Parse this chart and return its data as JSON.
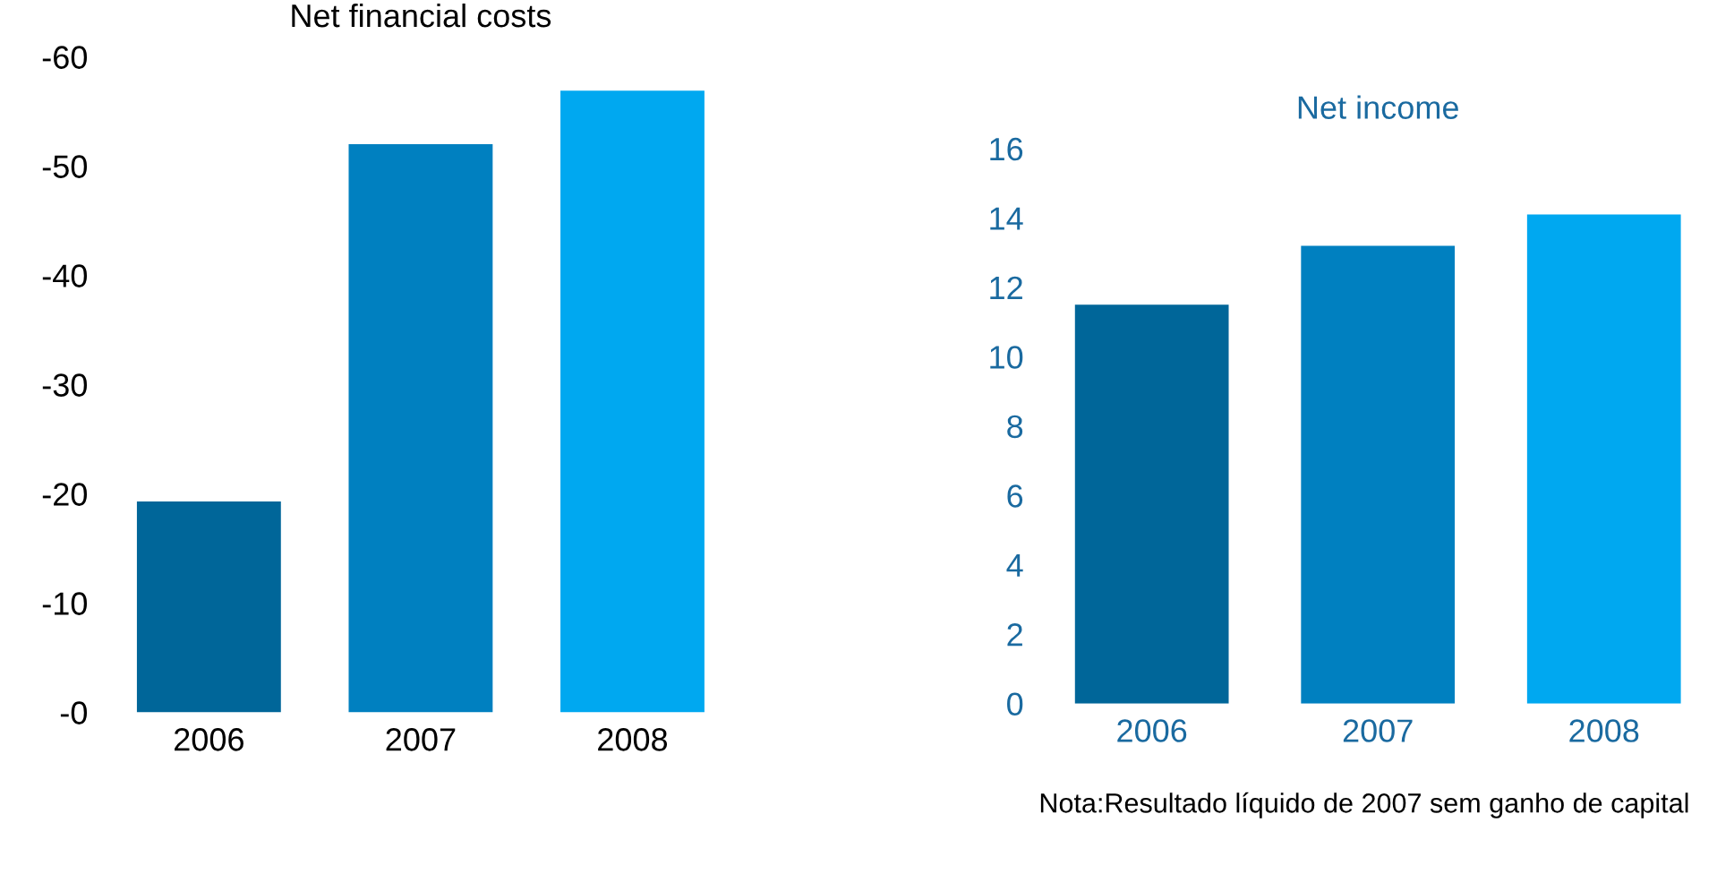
{
  "chart_data": [
    {
      "type": "bar",
      "title": "Net financial costs",
      "categories": [
        "2006",
        "2007",
        "2008"
      ],
      "colors": [
        "#006699",
        "#0080c0",
        "#00a8f0"
      ],
      "values": [
        -19.3,
        -52.0,
        -56.9
      ],
      "ylim": [
        0,
        -60
      ],
      "yticks": [
        {
          "value": 0,
          "label": "-0"
        },
        -10,
        -20,
        -30,
        -40,
        -50,
        -60
      ],
      "grid": false,
      "legend": false
    },
    {
      "type": "bar",
      "title": "Net income",
      "categories": [
        "2006",
        "2007",
        "2008"
      ],
      "colors": [
        "#006699",
        "#0080c0",
        "#00a8f0"
      ],
      "values": [
        11.5,
        13.2,
        14.1
      ],
      "ylim": [
        0,
        16
      ],
      "yticks": [
        0,
        2,
        4,
        6,
        8,
        10,
        12,
        14,
        16
      ],
      "grid": false,
      "legend": false,
      "annotations": [
        "Nota:Resultado líquido de 2007 sem ganho de capital"
      ]
    }
  ]
}
